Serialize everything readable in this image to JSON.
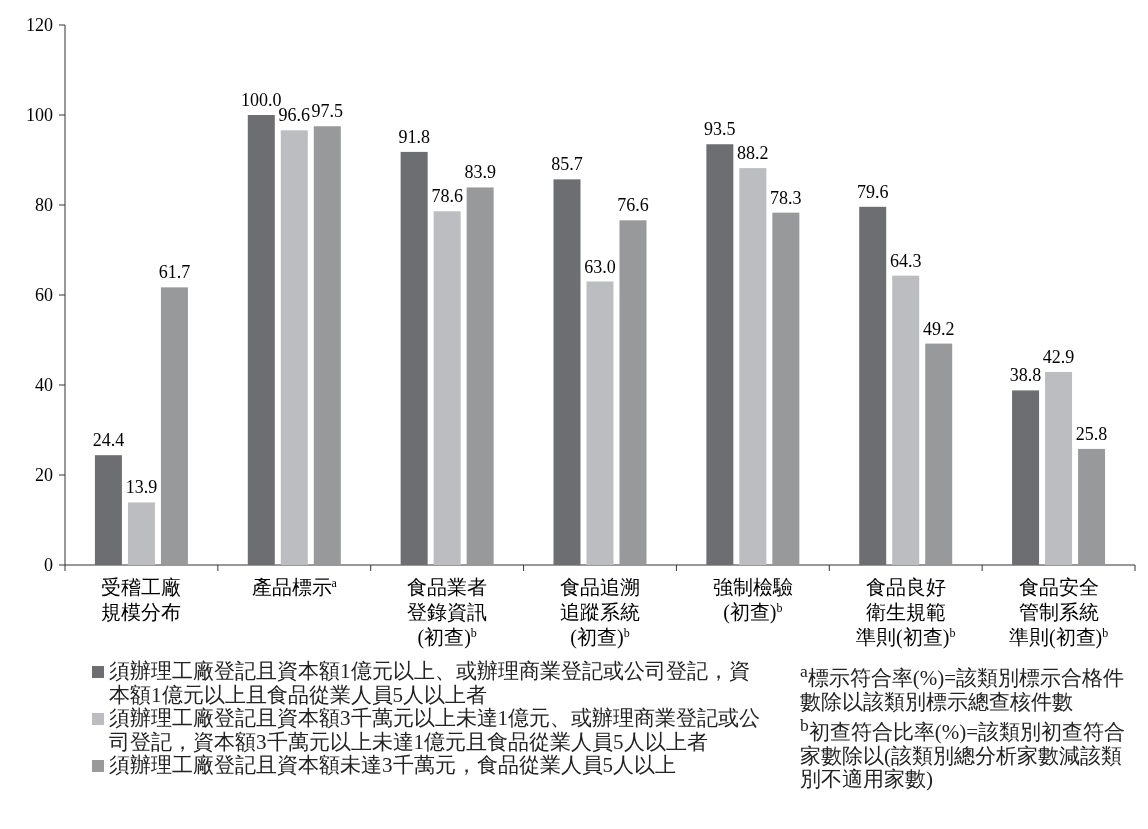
{
  "chart_data": {
    "type": "bar",
    "categories": [
      "受稽工廠規模分布",
      "產品標示$^{a}$",
      "食品業者登錄資訊(初查)$^{b}$",
      "食品追溯追蹤系統(初查)$^{b}$",
      "強制檢驗(初查)$^{b}$",
      "食品良好衛生規範準則(初查)$^{b}$",
      "食品安全管制系統準則(初查)$^{b}$"
    ],
    "series": [
      {
        "name": "須辦理工廠登記且資本額1億元以上、或辦理商業登記或公司登記，資本額1億元以上且食品從業人員5人以上者",
        "color": "#6d6e71",
        "values": [
          24.4,
          100.0,
          91.8,
          85.7,
          93.5,
          79.6,
          38.8
        ],
        "value_labels": [
          "24.4",
          "100.0",
          "91.8",
          "85.7",
          "93.5",
          "79.6",
          "38.8"
        ]
      },
      {
        "name": "須辦理工廠登記且資本額3千萬元以上未達1億元、或辦理商業登記或公司登記，資本額3千萬元以上未達1億元且食品從業人員5人以上者",
        "color": "#bcbdc0",
        "values": [
          13.9,
          96.6,
          78.6,
          63.0,
          88.2,
          64.3,
          42.9
        ],
        "value_labels": [
          "13.9",
          "96.6",
          "78.6",
          "63.0",
          "88.2",
          "64.3",
          "42.9"
        ]
      },
      {
        "name": "須辦理工廠登記且資本額未達3千萬元，食品從業人員5人以上",
        "color": "#98999b",
        "values": [
          61.7,
          97.5,
          83.9,
          76.6,
          78.3,
          49.2,
          25.8
        ],
        "value_labels": [
          "61.7",
          "97.5",
          "83.9",
          "76.6",
          "78.3",
          "49.2",
          "25.8"
        ]
      }
    ],
    "ylim": [
      0,
      120
    ],
    "yticks": [
      0,
      20,
      40,
      60,
      80,
      100,
      120
    ],
    "grid": false,
    "legend": "bottom",
    "annotations": [
      "$^{a}$標示符合率(%)=該類別標示合格件數除以該類別標示總查核件數",
      "$^{b}$初查符合比率(%)=該類別初查符合家數除以(該類別總分析家數減該類別不適用家數)"
    ]
  }
}
